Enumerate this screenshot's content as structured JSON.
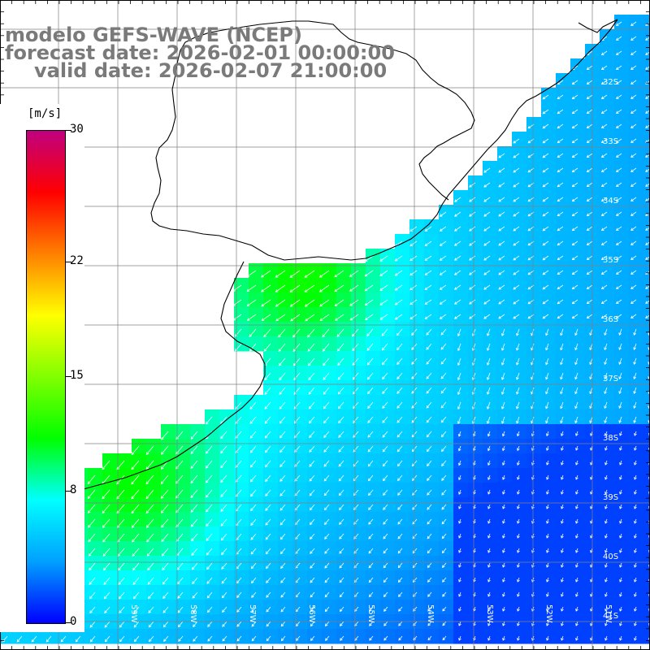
{
  "title": {
    "line1": "modelo GEFS-WAVE (NCEP)",
    "line2": "forecast date: 2026-02-01 00:00:00",
    "line3": "valid date: 2026-02-07 21:00:00"
  },
  "colorbar": {
    "unit": "[m/s]",
    "ticks": [
      "30",
      "22",
      "15",
      "8",
      "0"
    ],
    "tick_values": [
      30,
      22,
      15,
      8,
      0
    ],
    "colors": [
      "#0000ff",
      "#00a0ff",
      "#00ffff",
      "#00ff00",
      "#80ff00",
      "#ffff00",
      "#ff8000",
      "#ff0000",
      "#c00080"
    ]
  },
  "lat_labels": [
    "32S",
    "33S",
    "34S",
    "35S",
    "36S",
    "37S",
    "38S",
    "39S",
    "40S",
    "41S"
  ],
  "lon_labels": [
    "59W",
    "58W",
    "57W",
    "56W",
    "55W",
    "54W",
    "53W",
    "52W",
    "51W"
  ],
  "field": {
    "variable": "wind speed",
    "units": "m/s",
    "arrow_direction": "southwest"
  },
  "colors": {
    "land": "#ffffff",
    "coast": "#000000",
    "grid": "#808080",
    "text_gray": "#7a7a7a",
    "arrow": "#ffffff"
  }
}
